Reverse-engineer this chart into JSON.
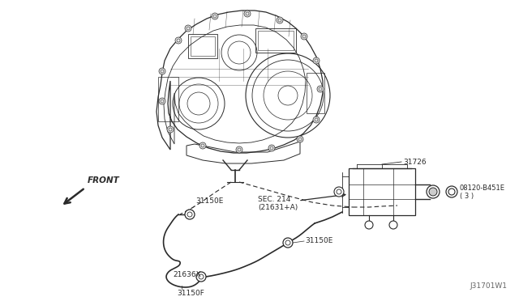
{
  "bg_color": "#ffffff",
  "line_color": "#2a2a2a",
  "text_color": "#2a2a2a",
  "fig_width": 6.4,
  "fig_height": 3.72,
  "dpi": 100,
  "watermark": "J31701W1",
  "labels": {
    "front_arrow": "FRONT",
    "sec214": "SEC. 214\n(21631+A)",
    "part_31726": "31726",
    "part_31150E_left": "31150E",
    "part_31150E_mid": "31150E",
    "part_31150F": "31150F",
    "part_21636X": "21636X",
    "part_08120_line1": "08120-B451E",
    "part_08120_line2": "( 3 )"
  }
}
